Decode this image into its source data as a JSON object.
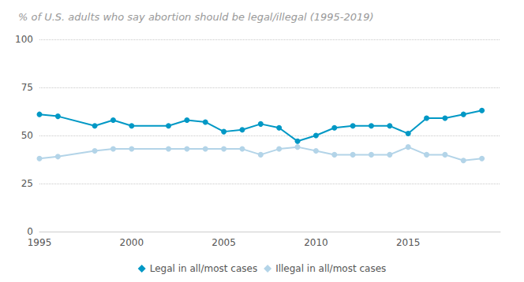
{
  "chart_data": {
    "type": "line",
    "title": "% of U.S. adults who say abortion should be legal/illegal (1995-2019)",
    "x": [
      1995,
      1996,
      1998,
      1999,
      2000,
      2002,
      2003,
      2004,
      2005,
      2006,
      2007,
      2008,
      2009,
      2010,
      2011,
      2012,
      2013,
      2014,
      2015,
      2016,
      2017,
      2018,
      2019
    ],
    "series": [
      {
        "name": "Legal in all/most cases",
        "color": "#0098c5",
        "values": [
          61,
          60,
          55,
          58,
          55,
          55,
          58,
          57,
          52,
          53,
          56,
          54,
          47,
          50,
          54,
          55,
          55,
          55,
          51,
          59,
          59,
          61,
          63
        ]
      },
      {
        "name": "Illegal in all/most cases",
        "color": "#b3d4e8",
        "values": [
          38,
          39,
          42,
          43,
          43,
          43,
          43,
          43,
          43,
          43,
          40,
          43,
          44,
          42,
          40,
          40,
          40,
          40,
          44,
          40,
          40,
          37,
          38
        ]
      }
    ],
    "xlim": [
      1995,
      2020
    ],
    "xticks": [
      1995,
      2000,
      2005,
      2010,
      2015
    ],
    "ylim": [
      0,
      100
    ],
    "yticks": [
      0,
      25,
      50,
      75,
      100
    ],
    "grid": true,
    "legend": "bottom",
    "marker": "circle"
  }
}
